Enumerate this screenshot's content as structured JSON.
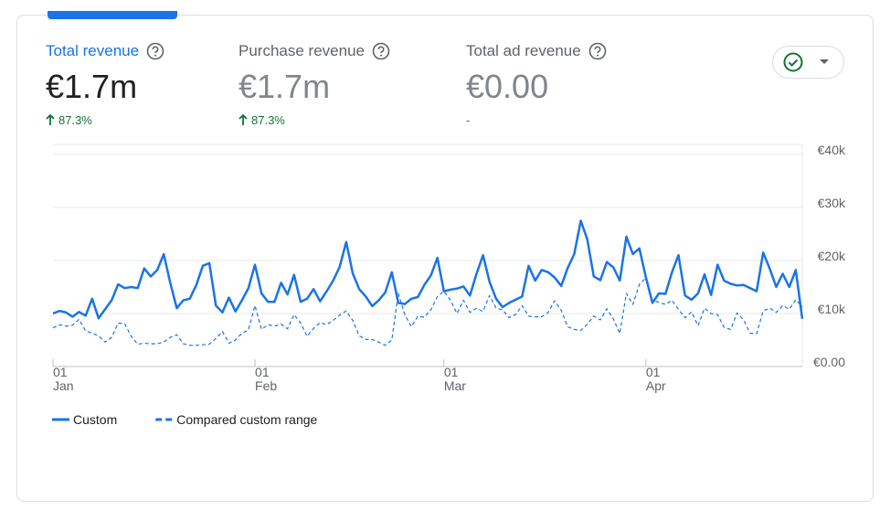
{
  "tabs": [
    {
      "title": "Total revenue",
      "value": "€1.7m",
      "change": "87.3%"
    },
    {
      "title": "Purchase revenue",
      "value": "€1.7m",
      "change": "87.3%"
    },
    {
      "title": "Total ad revenue",
      "value": "€0.00",
      "change": "-"
    }
  ],
  "chart_data": {
    "type": "line",
    "xlim": [
      0,
      115
    ],
    "xticks": [
      {
        "value": 0,
        "label": "01"
      },
      {
        "value": 31,
        "label": "01"
      },
      {
        "value": 60,
        "label": "01"
      },
      {
        "value": 91,
        "label": "01"
      }
    ],
    "xtick_months": [
      "Jan",
      "Feb",
      "Mar",
      "Apr"
    ],
    "ylim": [
      0,
      40000
    ],
    "yticks": [
      {
        "value": 0,
        "label": "€0.00"
      },
      {
        "value": 10000,
        "label": "€10k"
      },
      {
        "value": 20000,
        "label": "€20k"
      },
      {
        "value": 30000,
        "label": "€30k"
      },
      {
        "value": 40000,
        "label": "€40k"
      }
    ],
    "grid": true,
    "series": [
      {
        "name": "Custom",
        "color": "#1a73e8",
        "style": "solid",
        "values": [
          10000,
          10500,
          10200,
          9400,
          10300,
          9600,
          12800,
          9100,
          10800,
          12500,
          15500,
          14800,
          15000,
          14800,
          18500,
          17000,
          18200,
          21200,
          15800,
          11000,
          12500,
          12800,
          15400,
          19000,
          19500,
          11500,
          10200,
          13000,
          10400,
          12500,
          14800,
          19200,
          13800,
          12200,
          12200,
          15800,
          13600,
          17300,
          12200,
          12800,
          14600,
          12300,
          14200,
          16200,
          18800,
          23500,
          17600,
          14600,
          13200,
          11400,
          12500,
          14000,
          17800,
          12000,
          11800,
          12800,
          13100,
          15400,
          17200,
          20500,
          14200,
          14500,
          14700,
          15100,
          13400,
          17500,
          21000,
          16000,
          12800,
          11200,
          12000,
          12600,
          13200,
          19000,
          16200,
          18200,
          17800,
          16800,
          15200,
          18600,
          21200,
          27500,
          24000,
          17000,
          16300,
          19700,
          18700,
          16200,
          24500,
          21200,
          22300,
          16800,
          12000,
          13800,
          13700,
          17800,
          21000,
          13400,
          12600,
          13800,
          17400,
          13500,
          19200,
          16200,
          15600,
          15300,
          15400,
          14800,
          14200,
          21500,
          18500,
          15000,
          17500,
          15000,
          18200,
          9000
        ]
      },
      {
        "name": "Compared custom range",
        "color": "#1a73e8",
        "style": "dashed",
        "values": [
          7300,
          7900,
          7600,
          7800,
          8900,
          6700,
          6300,
          5800,
          4600,
          5500,
          8200,
          8100,
          5700,
          4200,
          4400,
          4300,
          4300,
          4600,
          5500,
          6000,
          4300,
          4000,
          4000,
          4100,
          4200,
          5300,
          6600,
          4400,
          5000,
          6300,
          6900,
          11500,
          7000,
          7900,
          7600,
          8000,
          7100,
          9800,
          8200,
          5700,
          7200,
          8300,
          7900,
          8700,
          9700,
          10500,
          8700,
          5800,
          5100,
          5100,
          4600,
          4000,
          5000,
          13800,
          9800,
          7500,
          9500,
          9300,
          10700,
          13200,
          14200,
          12500,
          10000,
          12500,
          10200,
          11000,
          10400,
          13400,
          11000,
          10700,
          9200,
          9800,
          11500,
          9500,
          9400,
          9400,
          10200,
          12400,
          10600,
          7500,
          7000,
          6800,
          8000,
          9500,
          8800,
          10900,
          9000,
          6200,
          13800,
          11700,
          15500,
          16700,
          12500,
          12100,
          11700,
          12500,
          10800,
          9200,
          10300,
          7700,
          11000,
          10000,
          9800,
          7400,
          7000,
          10100,
          8800,
          6300,
          6200,
          10500,
          11000,
          10200,
          11500,
          10800,
          12600,
          11200
        ]
      }
    ]
  }
}
